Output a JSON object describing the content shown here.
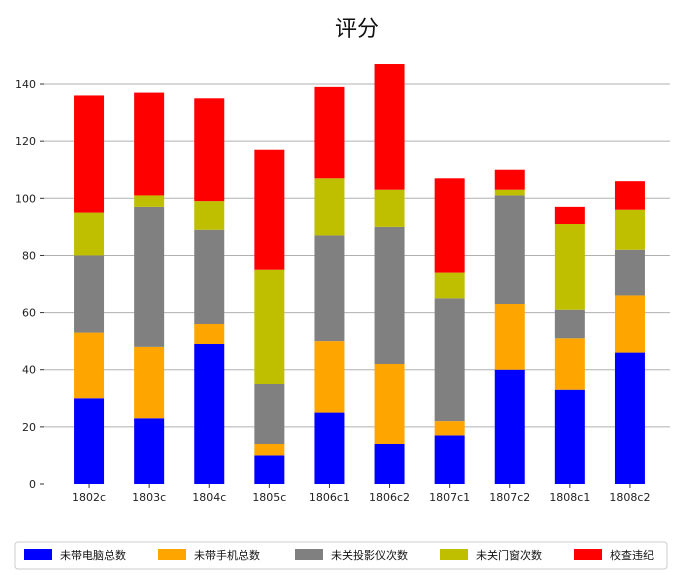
{
  "chart_data": {
    "type": "bar",
    "stacked": true,
    "title": "评分",
    "xlabel": "",
    "ylabel": "",
    "categories": [
      "1802c",
      "1803c",
      "1804c",
      "1805c",
      "1806c1",
      "1806c2",
      "1807c1",
      "1807c2",
      "1808c1",
      "1808c2"
    ],
    "series": [
      {
        "name": "未带电脑总数",
        "color": "#0000ff",
        "values": [
          30,
          23,
          49,
          10,
          25,
          14,
          17,
          40,
          33,
          46
        ]
      },
      {
        "name": "未带手机总数",
        "color": "#ffa500",
        "values": [
          23,
          25,
          7,
          4,
          25,
          28,
          5,
          23,
          18,
          20
        ]
      },
      {
        "name": "未关投影仪次数",
        "color": "#808080",
        "values": [
          27,
          49,
          33,
          21,
          37,
          48,
          43,
          38,
          10,
          16
        ]
      },
      {
        "name": "未关门窗次数",
        "color": "#bfbf00",
        "values": [
          15,
          4,
          10,
          40,
          20,
          13,
          9,
          2,
          30,
          14
        ]
      },
      {
        "name": "校查违纪",
        "color": "#ff0000",
        "values": [
          41,
          36,
          36,
          42,
          32,
          44,
          33,
          7,
          6,
          10
        ]
      }
    ],
    "yticks": [
      0,
      20,
      40,
      60,
      80,
      100,
      120,
      140
    ],
    "ylim": [
      0,
      155
    ],
    "grid": "horizontal",
    "legend_position": "bottom"
  }
}
